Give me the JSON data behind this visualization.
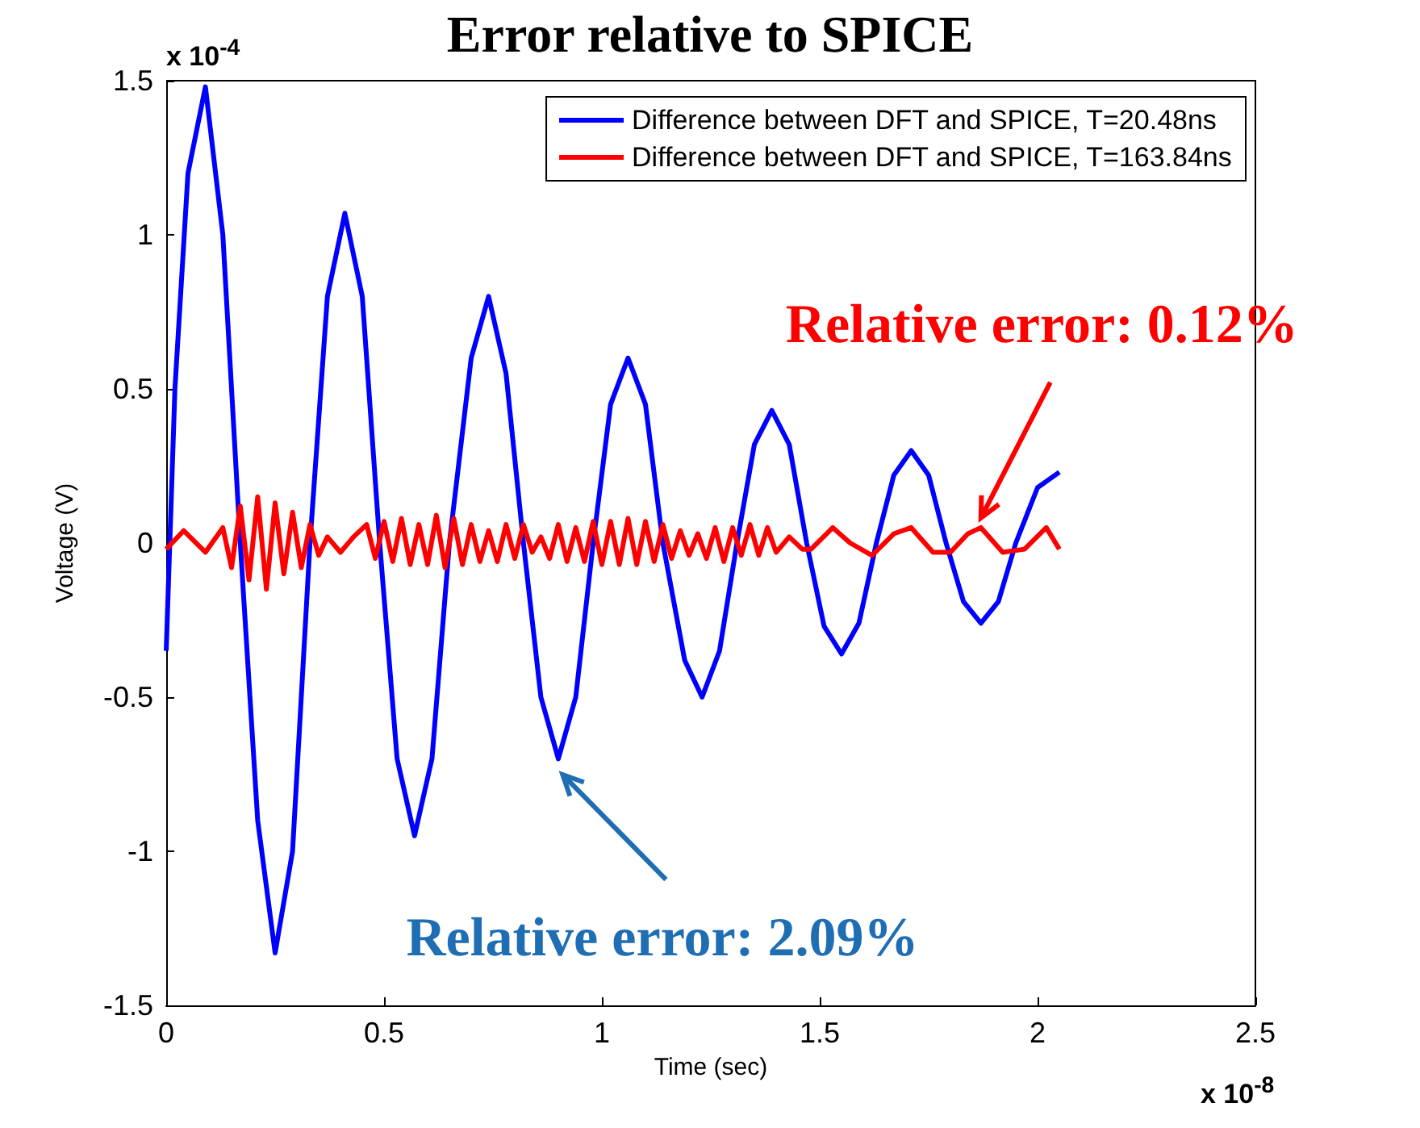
{
  "chart_data": {
    "type": "line",
    "title": "Error relative to SPICE",
    "xlabel": "Time (sec)",
    "ylabel": "Voltage (V)",
    "xlim": [
      0,
      2.5
    ],
    "xticks": [
      0,
      0.5,
      1,
      1.5,
      2,
      2.5
    ],
    "ylim": [
      -1.5,
      1.5
    ],
    "yticks": [
      -1.5,
      -1,
      -0.5,
      0,
      0.5,
      1,
      1.5
    ],
    "grid": false,
    "legend": "top right",
    "marker": "none",
    "line_style": "solid",
    "annotations": [
      "x 10$^{-4}$",
      "x 10$^{-8}$",
      {
        "text": "Relative error: 0.12%",
        "x": 1.87,
        "y": 0.05
      },
      {
        "text": "Relative error: 2.09%",
        "x": 0.91,
        "y": -0.72
      }
    ],
    "series": [
      {
        "name": "Difference between DFT and SPICE, T=20.48ns",
        "color": "#0000ff",
        "x": [
          0,
          0.02,
          0.05,
          0.09,
          0.13,
          0.17,
          0.21,
          0.25,
          0.29,
          0.33,
          0.37,
          0.41,
          0.45,
          0.49,
          0.53,
          0.57,
          0.61,
          0.65,
          0.7,
          0.74,
          0.78,
          0.82,
          0.86,
          0.9,
          0.94,
          0.98,
          1.02,
          1.06,
          1.1,
          1.14,
          1.19,
          1.23,
          1.27,
          1.31,
          1.35,
          1.39,
          1.43,
          1.47,
          1.51,
          1.55,
          1.59,
          1.63,
          1.67,
          1.71,
          1.75,
          1.79,
          1.83,
          1.87,
          1.91,
          1.95,
          2,
          2.05
        ],
        "values": [
          -0.35,
          0.5,
          1.2,
          1.48,
          1,
          0,
          -0.9,
          -1.33,
          -1,
          0,
          0.8,
          1.07,
          0.8,
          0,
          -0.7,
          -0.95,
          -0.7,
          0,
          0.6,
          0.8,
          0.55,
          0,
          -0.5,
          -0.7,
          -0.5,
          0,
          0.45,
          0.6,
          0.45,
          0,
          -0.38,
          -0.5,
          -0.35,
          0,
          0.32,
          0.43,
          0.32,
          0,
          -0.27,
          -0.36,
          -0.26,
          0,
          0.22,
          0.3,
          0.22,
          0,
          -0.19,
          -0.26,
          -0.19,
          0,
          0.18,
          0.23
        ]
      },
      {
        "name": "Difference between DFT and SPICE, T=163.84ns",
        "color": "#ff0000",
        "x": [
          0,
          0.04,
          0.09,
          0.13,
          0.15,
          0.17,
          0.19,
          0.21,
          0.23,
          0.25,
          0.27,
          0.29,
          0.31,
          0.33,
          0.35,
          0.37,
          0.4,
          0.43,
          0.46,
          0.48,
          0.5,
          0.52,
          0.54,
          0.56,
          0.58,
          0.6,
          0.62,
          0.64,
          0.66,
          0.68,
          0.7,
          0.72,
          0.74,
          0.76,
          0.78,
          0.8,
          0.82,
          0.84,
          0.86,
          0.88,
          0.9,
          0.92,
          0.94,
          0.96,
          0.98,
          1,
          1.02,
          1.04,
          1.06,
          1.08,
          1.1,
          1.12,
          1.14,
          1.16,
          1.18,
          1.2,
          1.22,
          1.24,
          1.26,
          1.28,
          1.3,
          1.32,
          1.34,
          1.36,
          1.38,
          1.4,
          1.43,
          1.46,
          1.48,
          1.53,
          1.57,
          1.62,
          1.67,
          1.71,
          1.76,
          1.8,
          1.84,
          1.87,
          1.92,
          1.97,
          2.02,
          2.05
        ],
        "values": [
          -0.02,
          0.04,
          -0.03,
          0.05,
          -0.08,
          0.12,
          -0.12,
          0.15,
          -0.15,
          0.13,
          -0.1,
          0.1,
          -0.08,
          0.06,
          -0.04,
          0.02,
          -0.03,
          0.02,
          0.06,
          -0.05,
          0.07,
          -0.06,
          0.08,
          -0.07,
          0.06,
          -0.07,
          0.09,
          -0.08,
          0.08,
          -0.07,
          0.06,
          -0.06,
          0.04,
          -0.06,
          0.06,
          -0.05,
          0.06,
          -0.03,
          0.02,
          -0.05,
          0.06,
          -0.06,
          0.05,
          -0.06,
          0.07,
          -0.07,
          0.07,
          -0.07,
          0.08,
          -0.07,
          0.07,
          -0.06,
          0.06,
          -0.05,
          0.04,
          -0.04,
          0.03,
          -0.05,
          0.05,
          -0.06,
          0.05,
          -0.04,
          0.06,
          -0.04,
          0.05,
          -0.03,
          0.02,
          -0.02,
          -0.02,
          0.05,
          0,
          -0.04,
          0.03,
          0.05,
          -0.03,
          -0.03,
          0.03,
          0.05,
          -0.03,
          -0.02,
          0.05,
          -0.02
        ]
      }
    ]
  }
}
